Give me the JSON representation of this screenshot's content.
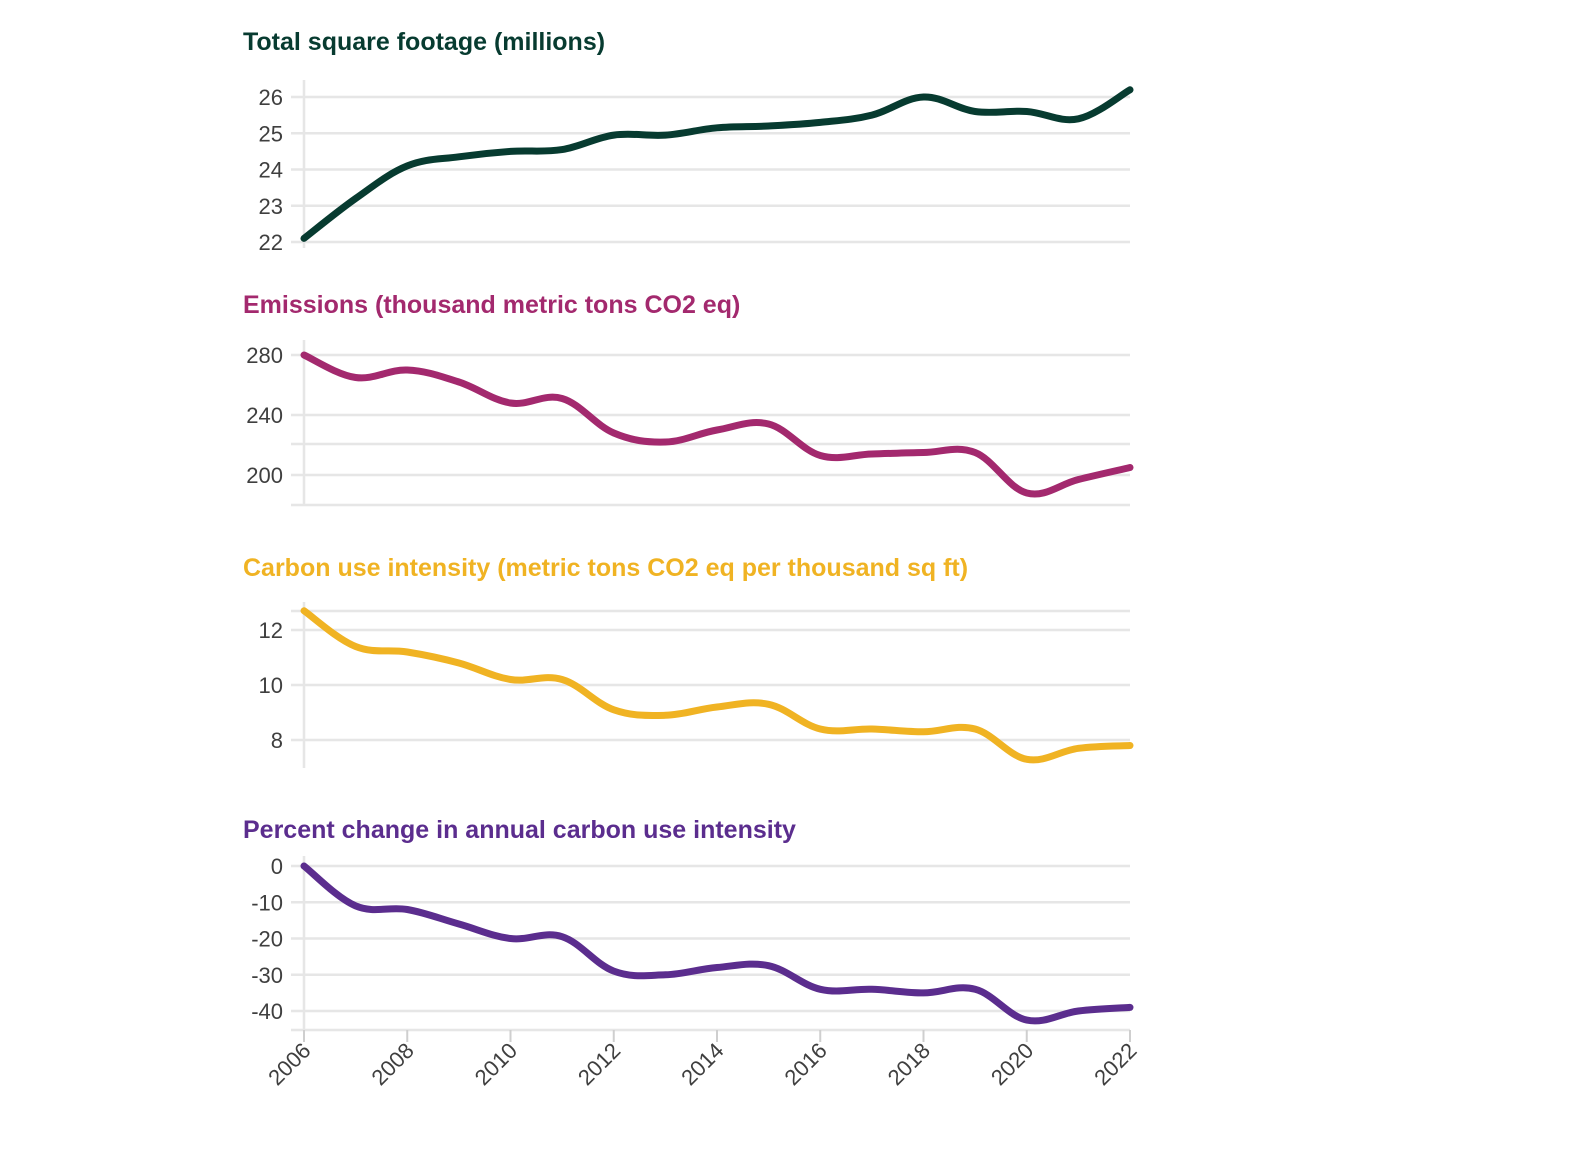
{
  "chart_data": [
    {
      "type": "line",
      "title": "Total square footage (millions)",
      "color": "#073b30",
      "ylim": [
        22,
        26.2
      ],
      "yticks": [
        "22",
        "23",
        "24",
        "25",
        "26"
      ],
      "x": [
        2006,
        2007,
        2008,
        2009,
        2010,
        2011,
        2012,
        2013,
        2014,
        2015,
        2016,
        2017,
        2018,
        2019,
        2020,
        2021,
        2022
      ],
      "values": [
        22.1,
        23.2,
        24.1,
        24.35,
        24.5,
        24.55,
        24.95,
        24.95,
        25.15,
        25.2,
        25.3,
        25.5,
        26.0,
        25.6,
        25.6,
        25.4,
        26.2
      ]
    },
    {
      "type": "line",
      "title": "Emissions (thousand metric tons CO2 eq)",
      "color": "#a3296e",
      "ylim": [
        180,
        280
      ],
      "yticks": [
        "200",
        "240",
        "280"
      ],
      "x": [
        2006,
        2007,
        2008,
        2009,
        2010,
        2011,
        2012,
        2013,
        2014,
        2015,
        2016,
        2017,
        2018,
        2019,
        2020,
        2021,
        2022
      ],
      "values": [
        280,
        265,
        270,
        262,
        248,
        251,
        228,
        222,
        230,
        234,
        213,
        214,
        215,
        215,
        188,
        197,
        205
      ]
    },
    {
      "type": "line",
      "title": "Carbon use intensity (metric tons CO2 eq per thousand sq ft)",
      "color": "#f0b323",
      "ylim": [
        7,
        12.9
      ],
      "yticks": [
        "8",
        "10",
        "12"
      ],
      "x": [
        2006,
        2007,
        2008,
        2009,
        2010,
        2011,
        2012,
        2013,
        2014,
        2015,
        2016,
        2017,
        2018,
        2019,
        2020,
        2021,
        2022
      ],
      "values": [
        12.7,
        11.4,
        11.2,
        10.8,
        10.2,
        10.2,
        9.1,
        8.9,
        9.2,
        9.3,
        8.4,
        8.4,
        8.3,
        8.4,
        7.3,
        7.7,
        7.8
      ]
    },
    {
      "type": "line",
      "title": "Percent change in annual carbon use intensity",
      "color": "#5b2d8e",
      "ylim": [
        -45,
        0
      ],
      "yticks": [
        "0",
        "-10",
        "-20",
        "-30",
        "-40"
      ],
      "x": [
        2006,
        2007,
        2008,
        2009,
        2010,
        2011,
        2012,
        2013,
        2014,
        2015,
        2016,
        2017,
        2018,
        2019,
        2020,
        2021,
        2022
      ],
      "values": [
        0,
        -11,
        -12,
        -16,
        -20,
        -19.5,
        -29,
        -30,
        -28,
        -27.5,
        -34,
        -34,
        -35,
        -34,
        -42.5,
        -40,
        -39
      ]
    }
  ],
  "x_axis": {
    "ticks": [
      "2006",
      "2008",
      "2010",
      "2012",
      "2014",
      "2016",
      "2018",
      "2020",
      "2022"
    ]
  }
}
